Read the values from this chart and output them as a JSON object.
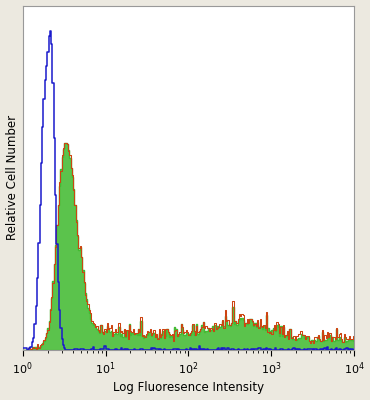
{
  "xlabel": "Log Fluoresence Intensity",
  "ylabel": "Relative Cell Number",
  "xlim": [
    1,
    10000
  ],
  "xscale": "log",
  "background_color": "#ece9e0",
  "plot_bg_color": "#ffffff",
  "blue_color": "#1a1acc",
  "green_color": "#44bb33",
  "red_color": "#cc4411",
  "seed": 42,
  "n_bins": 256,
  "figsize": [
    3.7,
    4.0
  ],
  "dpi": 100
}
